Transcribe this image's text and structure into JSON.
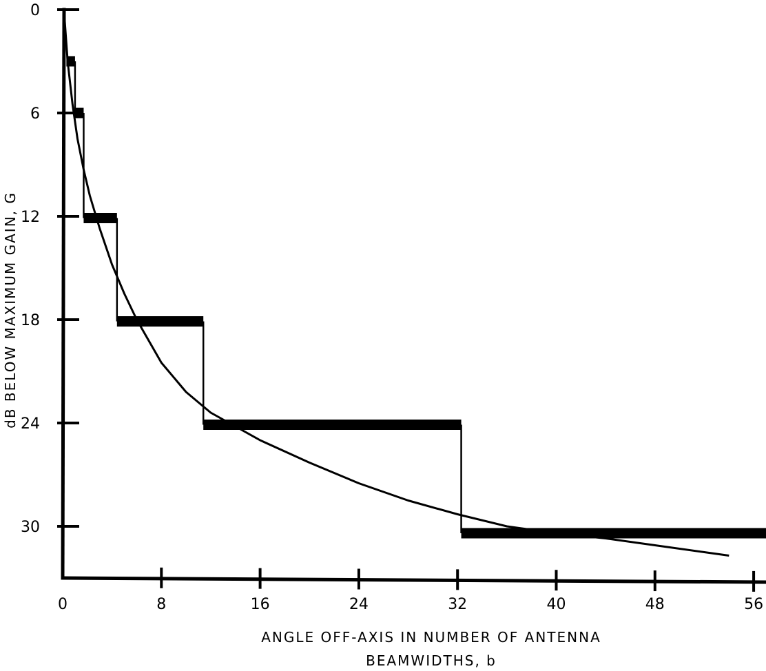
{
  "chart_data": {
    "type": "line",
    "title": "",
    "xlabel_line1": "ANGLE OFF-AXIS IN NUMBER OF ANTENNA",
    "xlabel_line2": "BEAMWIDTHS, b",
    "ylabel": "dB BELOW MAXIMUM GAIN, G",
    "xlim": [
      0,
      57
    ],
    "ylim": [
      0,
      33
    ],
    "y_inverted": true,
    "xticks": [
      0,
      8,
      16,
      24,
      32,
      40,
      48,
      56
    ],
    "yticks": [
      0,
      6,
      12,
      18,
      24,
      30
    ],
    "grid": false,
    "series": [
      {
        "style": "step",
        "x": [
          0.3,
          1.0,
          1.0,
          1.7,
          1.7,
          4.4,
          4.4,
          11.4,
          11.4,
          32.3,
          32.3,
          57.0
        ],
        "y": [
          3.0,
          3.0,
          6.0,
          6.0,
          12.1,
          12.1,
          18.1,
          18.1,
          24.1,
          24.1,
          30.4,
          30.4
        ]
      },
      {
        "style": "curve",
        "x": [
          0.1,
          0.4,
          0.8,
          1.2,
          1.7,
          2.2,
          3.0,
          4.0,
          5.0,
          6.0,
          8.0,
          10.0,
          12.0,
          14.0,
          16.0,
          20.0,
          24.0,
          28.0,
          32.0,
          36.0,
          40.0,
          44.0,
          48.0,
          52.0,
          54.0
        ],
        "y": [
          0.0,
          3.0,
          5.5,
          7.5,
          9.3,
          10.8,
          12.7,
          14.8,
          16.5,
          18.0,
          20.5,
          22.2,
          23.4,
          24.2,
          25.0,
          26.3,
          27.5,
          28.5,
          29.3,
          30.0,
          30.4,
          30.7,
          31.1,
          31.5,
          31.7
        ]
      }
    ]
  }
}
